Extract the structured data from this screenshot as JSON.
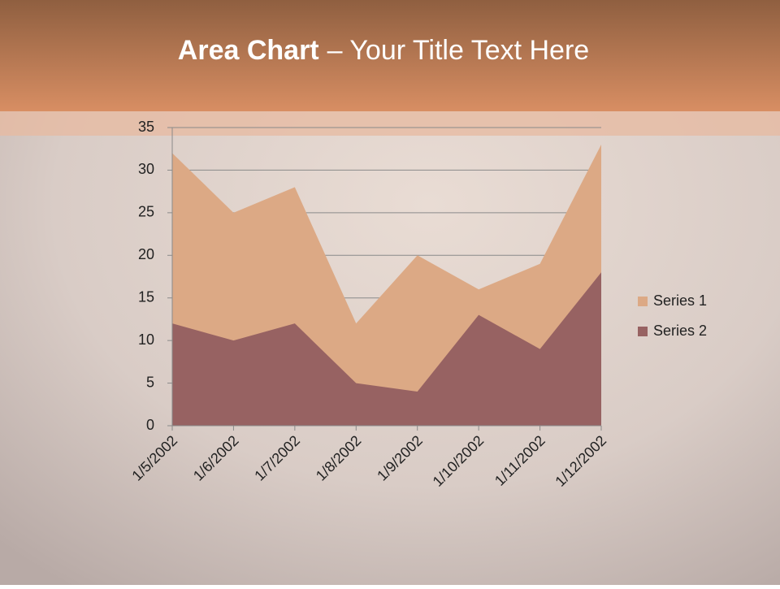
{
  "chart_data": {
    "type": "area",
    "title": {
      "bold": "Area Chart",
      "rest": "– Your Title Text Here"
    },
    "categories": [
      "1/5/2002",
      "1/6/2002",
      "1/7/2002",
      "1/8/2002",
      "1/9/2002",
      "1/10/2002",
      "1/11/2002",
      "1/12/2002"
    ],
    "series": [
      {
        "name": "Series 1",
        "color": "#dca985",
        "values": [
          32,
          25,
          28,
          12,
          20,
          16,
          19,
          33
        ]
      },
      {
        "name": "Series 2",
        "color": "#976262",
        "values": [
          12,
          10,
          12,
          5,
          4,
          13,
          9,
          18
        ]
      }
    ],
    "ylim": [
      0,
      35
    ],
    "yticks": [
      0,
      5,
      10,
      15,
      20,
      25,
      30,
      35
    ],
    "grid": true,
    "legend": "right"
  }
}
